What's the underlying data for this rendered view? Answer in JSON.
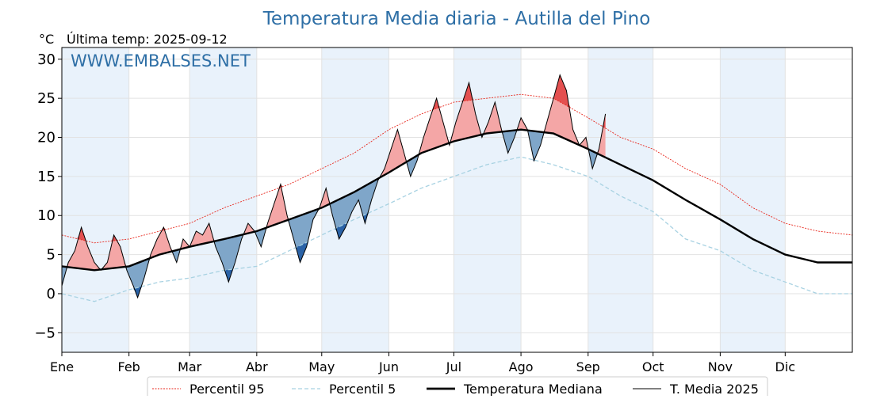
{
  "chart_data": {
    "type": "line",
    "title": "Temperatura Media diaria - Autilla del Pino",
    "unit_label": "°C",
    "last_temp_label": "Última temp: 2025-09-12",
    "watermark": "WWW.EMBALSES.NET",
    "ylim": [
      -7.5,
      31.5
    ],
    "yticks": [
      -5,
      0,
      5,
      10,
      15,
      20,
      25,
      30
    ],
    "xlim": [
      0,
      365
    ],
    "months": [
      "Ene",
      "Feb",
      "Mar",
      "Abr",
      "May",
      "Jun",
      "Jul",
      "Ago",
      "Sep",
      "Oct",
      "Nov",
      "Dic"
    ],
    "month_starts": [
      0,
      31,
      59,
      90,
      120,
      151,
      181,
      212,
      243,
      273,
      304,
      334
    ],
    "grid": true,
    "legend_position": "bottom",
    "colors": {
      "title": "#2e6fa6",
      "p95": "#e8281e",
      "p5": "#a8d2e2",
      "median": "#000000",
      "media2025": "#000000",
      "above_fill": "#f4a6a6",
      "above_strong_fill": "#e45050",
      "below_fill": "#7fa6c9",
      "below_strong_fill": "#2a62a6",
      "month_band": "#e9f2fb"
    },
    "series": [
      {
        "key": "p95",
        "name": "Percentil 95",
        "style": "dotted-red",
        "points": [
          [
            0,
            7.5
          ],
          [
            15,
            6.5
          ],
          [
            31,
            7
          ],
          [
            45,
            8
          ],
          [
            59,
            9
          ],
          [
            75,
            11
          ],
          [
            90,
            12.5
          ],
          [
            105,
            14
          ],
          [
            120,
            16
          ],
          [
            135,
            18
          ],
          [
            151,
            21
          ],
          [
            166,
            23
          ],
          [
            181,
            24.5
          ],
          [
            196,
            25
          ],
          [
            212,
            25.5
          ],
          [
            227,
            25
          ],
          [
            243,
            22.5
          ],
          [
            258,
            20
          ],
          [
            273,
            18.5
          ],
          [
            288,
            16
          ],
          [
            304,
            14
          ],
          [
            319,
            11
          ],
          [
            334,
            9
          ],
          [
            349,
            8
          ],
          [
            365,
            7.5
          ]
        ]
      },
      {
        "key": "p5",
        "name": "Percentil 5",
        "style": "dashed-blue",
        "points": [
          [
            0,
            0
          ],
          [
            15,
            -1
          ],
          [
            31,
            0.5
          ],
          [
            45,
            1.5
          ],
          [
            59,
            2
          ],
          [
            75,
            3
          ],
          [
            90,
            3.5
          ],
          [
            105,
            5.5
          ],
          [
            120,
            7.5
          ],
          [
            135,
            9.5
          ],
          [
            151,
            11.5
          ],
          [
            166,
            13.5
          ],
          [
            181,
            15
          ],
          [
            196,
            16.5
          ],
          [
            212,
            17.5
          ],
          [
            227,
            16.5
          ],
          [
            243,
            15
          ],
          [
            258,
            12.5
          ],
          [
            273,
            10.5
          ],
          [
            288,
            7
          ],
          [
            304,
            5.5
          ],
          [
            319,
            3
          ],
          [
            334,
            1.5
          ],
          [
            349,
            0
          ],
          [
            365,
            0
          ]
        ]
      },
      {
        "key": "median",
        "name": "Temperatura Mediana",
        "style": "thick-black",
        "points": [
          [
            0,
            3.5
          ],
          [
            15,
            3
          ],
          [
            31,
            3.5
          ],
          [
            45,
            5
          ],
          [
            59,
            6
          ],
          [
            75,
            7
          ],
          [
            90,
            8
          ],
          [
            105,
            9.5
          ],
          [
            120,
            11
          ],
          [
            135,
            13
          ],
          [
            151,
            15.5
          ],
          [
            166,
            18
          ],
          [
            181,
            19.5
          ],
          [
            196,
            20.5
          ],
          [
            212,
            21
          ],
          [
            227,
            20.5
          ],
          [
            243,
            18.5
          ],
          [
            258,
            16.5
          ],
          [
            273,
            14.5
          ],
          [
            288,
            12
          ],
          [
            304,
            9.5
          ],
          [
            319,
            7
          ],
          [
            334,
            5
          ],
          [
            349,
            4
          ],
          [
            365,
            4
          ]
        ]
      },
      {
        "key": "media2025",
        "name": "T. Media 2025",
        "style": "thin-black",
        "points": [
          [
            0,
            1
          ],
          [
            3,
            4
          ],
          [
            6,
            5.5
          ],
          [
            9,
            8.5
          ],
          [
            12,
            6
          ],
          [
            15,
            4
          ],
          [
            18,
            3
          ],
          [
            21,
            4
          ],
          [
            24,
            7.5
          ],
          [
            27,
            6
          ],
          [
            30,
            3
          ],
          [
            33,
            1
          ],
          [
            35,
            -0.5
          ],
          [
            38,
            2
          ],
          [
            41,
            5
          ],
          [
            44,
            7
          ],
          [
            47,
            8.5
          ],
          [
            50,
            6
          ],
          [
            53,
            4
          ],
          [
            56,
            7
          ],
          [
            59,
            6
          ],
          [
            62,
            8
          ],
          [
            65,
            7.5
          ],
          [
            68,
            9
          ],
          [
            71,
            6
          ],
          [
            74,
            4
          ],
          [
            77,
            1.5
          ],
          [
            80,
            4
          ],
          [
            83,
            7
          ],
          [
            86,
            9
          ],
          [
            89,
            8
          ],
          [
            92,
            6
          ],
          [
            95,
            9
          ],
          [
            98,
            11.5
          ],
          [
            101,
            14
          ],
          [
            104,
            10
          ],
          [
            107,
            7
          ],
          [
            110,
            4
          ],
          [
            113,
            6
          ],
          [
            116,
            9.5
          ],
          [
            119,
            11
          ],
          [
            122,
            13.5
          ],
          [
            125,
            10
          ],
          [
            128,
            7
          ],
          [
            131,
            8.5
          ],
          [
            134,
            10.5
          ],
          [
            137,
            12
          ],
          [
            140,
            9
          ],
          [
            143,
            12
          ],
          [
            146,
            14.5
          ],
          [
            149,
            16
          ],
          [
            152,
            18.5
          ],
          [
            155,
            21
          ],
          [
            158,
            18
          ],
          [
            161,
            15
          ],
          [
            164,
            17
          ],
          [
            167,
            20
          ],
          [
            170,
            22.5
          ],
          [
            173,
            25
          ],
          [
            176,
            22
          ],
          [
            179,
            19
          ],
          [
            182,
            22
          ],
          [
            185,
            24.5
          ],
          [
            188,
            27
          ],
          [
            191,
            23
          ],
          [
            194,
            20
          ],
          [
            197,
            22
          ],
          [
            200,
            24.5
          ],
          [
            203,
            21
          ],
          [
            206,
            18
          ],
          [
            209,
            20
          ],
          [
            212,
            22.5
          ],
          [
            215,
            21
          ],
          [
            218,
            17
          ],
          [
            221,
            19
          ],
          [
            224,
            22
          ],
          [
            227,
            25
          ],
          [
            230,
            28
          ],
          [
            233,
            26
          ],
          [
            236,
            21
          ],
          [
            239,
            19
          ],
          [
            242,
            20
          ],
          [
            245,
            16
          ],
          [
            248,
            18.5
          ],
          [
            251,
            23
          ]
        ]
      }
    ],
    "legend": [
      {
        "key": "p95",
        "label": "Percentil 95"
      },
      {
        "key": "p5",
        "label": "Percentil 5"
      },
      {
        "key": "median",
        "label": "Temperatura Mediana"
      },
      {
        "key": "media2025",
        "label": "T. Media 2025"
      }
    ]
  }
}
